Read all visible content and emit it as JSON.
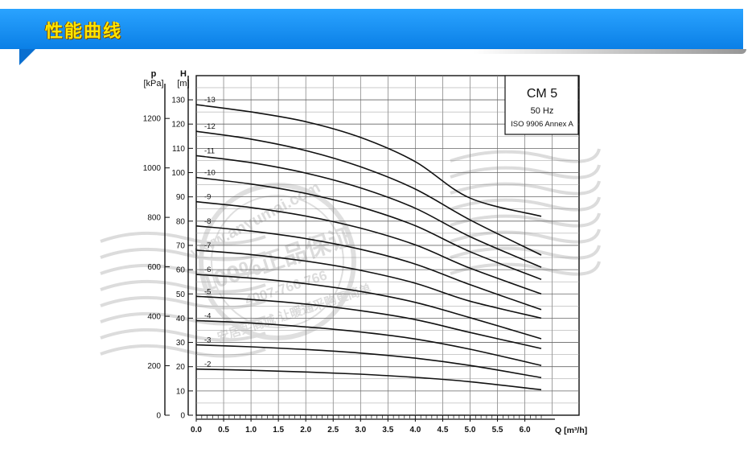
{
  "header": {
    "title": "性能曲线",
    "bar_color": "#1b8ff0",
    "title_color": "#ffe600"
  },
  "chart_data": {
    "type": "line",
    "model_box": {
      "model": "CM 5",
      "frequency": "50 Hz",
      "standard": "ISO 9906 Annex A"
    },
    "left_axis_unit_line1": "p",
    "left_axis_unit_line2": "[kPa]",
    "head_axis_unit_line1": "H",
    "head_axis_unit_line2": "[m]",
    "xlabel": "Q [m³/h]",
    "xlim": [
      0,
      6.3
    ],
    "ylim": [
      0,
      140
    ],
    "x_ticks": [
      "0.0",
      "0.5",
      "1.0",
      "1.5",
      "2.0",
      "2.5",
      "3.0",
      "3.5",
      "4.0",
      "4.5",
      "5.0",
      "5.5",
      "6.0"
    ],
    "head_ticks": [
      "0",
      "10",
      "20",
      "30",
      "40",
      "50",
      "60",
      "70",
      "80",
      "90",
      "100",
      "110",
      "120",
      "130"
    ],
    "pressure_ticks": [
      "0",
      "200",
      "400",
      "600",
      "800",
      "1000",
      "1200"
    ],
    "grid": true,
    "x": [
      0,
      1,
      2,
      3,
      4,
      5,
      6.3
    ],
    "series": [
      {
        "name": "-2",
        "values": [
          19,
          18.5,
          17.8,
          16.9,
          15.6,
          13.8,
          10.5
        ]
      },
      {
        "name": "-3",
        "values": [
          29,
          28.2,
          27.1,
          25.6,
          23.5,
          20.5,
          15.5
        ]
      },
      {
        "name": "-4",
        "values": [
          39,
          38,
          36.4,
          34.3,
          31.4,
          27.2,
          20.5
        ]
      },
      {
        "name": "-5",
        "values": [
          49,
          47.7,
          45.8,
          43.1,
          39.4,
          34.1,
          27.5
        ]
      },
      {
        "name": "-6",
        "values": [
          58,
          56.5,
          54.2,
          51,
          46.5,
          40.2,
          31.5
        ]
      },
      {
        "name": "-7",
        "values": [
          68,
          66.2,
          63.5,
          59.7,
          54.4,
          47,
          40
        ]
      },
      {
        "name": "-8",
        "values": [
          78,
          75.9,
          72.8,
          68.4,
          62.3,
          53.8,
          43.5
        ]
      },
      {
        "name": "-9",
        "values": [
          88,
          85.6,
          82.1,
          77.1,
          70.2,
          60.6,
          50
        ]
      },
      {
        "name": "-10",
        "values": [
          98,
          95.3,
          91.4,
          85.8,
          78.1,
          67.4,
          56
        ]
      },
      {
        "name": "-11",
        "values": [
          107,
          104.1,
          99.8,
          93.7,
          85.3,
          73.6,
          61
        ]
      },
      {
        "name": "-12",
        "values": [
          117,
          113.8,
          109.1,
          102.4,
          93.2,
          80.5,
          66
        ]
      },
      {
        "name": "-13",
        "values": [
          128,
          125,
          121,
          114.5,
          104.5,
          89.5,
          82
        ]
      }
    ]
  },
  "watermark": {
    "url": "www.anyumai.com",
    "slogan": "100%正品保证",
    "phone": "4007-766-766",
    "bottom": "安居买商城·让暖通采购更简单"
  }
}
